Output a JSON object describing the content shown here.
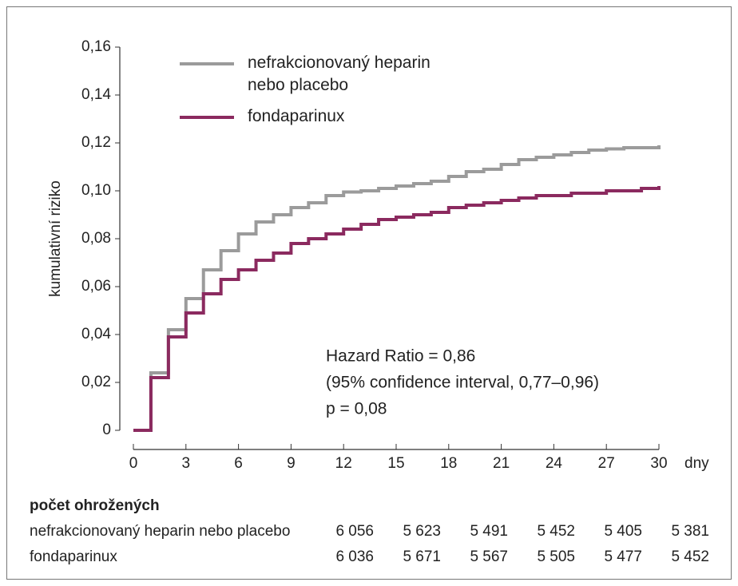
{
  "chart_data": {
    "type": "step",
    "y_label": "kumulativní riziko",
    "x_label": "dny",
    "x": [
      0,
      1,
      2,
      3,
      4,
      5,
      6,
      7,
      8,
      9,
      10,
      11,
      12,
      13,
      14,
      15,
      16,
      17,
      18,
      19,
      20,
      21,
      22,
      23,
      24,
      25,
      26,
      27,
      28,
      29,
      30
    ],
    "series": [
      {
        "name": "nefrakcionovaný heparin nebo placebo",
        "color": "#9b9b9b",
        "values": [
          0,
          0.024,
          0.042,
          0.055,
          0.067,
          0.075,
          0.082,
          0.087,
          0.09,
          0.093,
          0.095,
          0.098,
          0.0995,
          0.1,
          0.101,
          0.102,
          0.103,
          0.104,
          0.106,
          0.108,
          0.109,
          0.111,
          0.113,
          0.114,
          0.115,
          0.116,
          0.117,
          0.1175,
          0.118,
          0.118,
          0.119
        ]
      },
      {
        "name": "fondaparinux",
        "color": "#8b2a5f",
        "values": [
          0,
          0.022,
          0.039,
          0.049,
          0.057,
          0.063,
          0.067,
          0.071,
          0.074,
          0.078,
          0.08,
          0.082,
          0.084,
          0.086,
          0.088,
          0.089,
          0.09,
          0.091,
          0.093,
          0.094,
          0.095,
          0.096,
          0.097,
          0.098,
          0.098,
          0.099,
          0.099,
          0.1,
          0.1,
          0.101,
          0.102
        ]
      }
    ],
    "xlim": [
      0,
      30
    ],
    "xticks": [
      0,
      3,
      6,
      9,
      12,
      15,
      18,
      21,
      24,
      27,
      30
    ],
    "ylim": [
      0,
      0.16
    ],
    "yticks": [
      0,
      {
        "value": 0.02,
        "label": "0,02"
      },
      {
        "value": 0.04,
        "label": "0,04"
      },
      {
        "value": 0.06,
        "label": "0,06"
      },
      {
        "value": 0.08,
        "label": "0,08"
      },
      {
        "value": 0.1,
        "label": "0,10"
      },
      {
        "value": 0.12,
        "label": "0,12"
      },
      {
        "value": 0.14,
        "label": "0,14"
      },
      {
        "value": 0.16,
        "label": "0,16"
      }
    ],
    "annotations": [
      "Hazard Ratio = 0,86",
      "(95% confidence interval, 0,77–0,96)",
      "p = 0,08"
    ]
  },
  "risk_table": {
    "title": "počet ohrožených",
    "rows": [
      {
        "label": "nefrakcionovaný heparin nebo placebo",
        "values": [
          "6 056",
          "5 623",
          "5 491",
          "5 452",
          "5 405",
          "5 381"
        ]
      },
      {
        "label": "fondaparinux",
        "values": [
          "6 036",
          "5 671",
          "5 567",
          "5 505",
          "5 477",
          "5 452"
        ]
      }
    ]
  }
}
